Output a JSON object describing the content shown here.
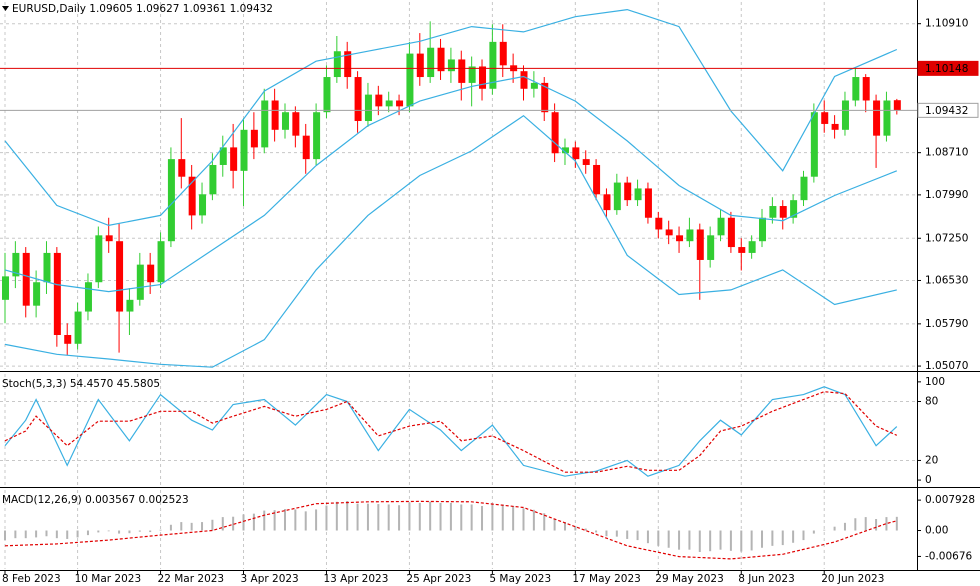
{
  "chart_data": [
    {
      "type": "candlestick",
      "title": "EURUSD,Daily 1.09605 1.09627 1.09361 1.09432",
      "up_color": "#32cd32",
      "down_color": "#ff0000",
      "grid": true,
      "ylim": [
        1.0502,
        1.1128
      ],
      "yticks": [
        {
          "value": 1.1091,
          "label": "1.10910"
        },
        {
          "value": 1.0871,
          "label": "1.08710"
        },
        {
          "value": 1.0799,
          "label": "1.07990"
        },
        {
          "value": 1.0725,
          "label": "1.07250"
        },
        {
          "value": 1.0653,
          "label": "1.06530"
        },
        {
          "value": 1.0579,
          "label": "1.05790"
        },
        {
          "value": 1.0507,
          "label": "1.05070"
        }
      ],
      "price_lines": [
        {
          "value": 1.10148,
          "color": "#e00000",
          "tag_fill": "#e00000",
          "tag_text": "#ffffff"
        },
        {
          "value": 1.09432,
          "color": "#a0a0a0",
          "tag_fill": "#ffffff",
          "tag_text": "#000000"
        }
      ],
      "ohlc": [
        [
          1.062,
          1.07,
          1.058,
          1.066
        ],
        [
          1.066,
          1.072,
          1.064,
          1.07
        ],
        [
          1.07,
          1.071,
          1.059,
          1.061
        ],
        [
          1.061,
          1.067,
          1.059,
          1.065
        ],
        [
          1.065,
          1.072,
          1.063,
          1.07
        ],
        [
          1.07,
          1.071,
          1.054,
          1.056
        ],
        [
          1.056,
          1.058,
          1.0525,
          1.0545
        ],
        [
          1.0545,
          1.0615,
          1.0535,
          1.06
        ],
        [
          1.06,
          1.0665,
          1.0585,
          1.065
        ],
        [
          1.065,
          1.0745,
          1.064,
          1.073
        ],
        [
          1.073,
          1.076,
          1.07,
          1.072
        ],
        [
          1.072,
          1.075,
          1.053,
          1.06
        ],
        [
          1.06,
          1.064,
          1.056,
          1.062
        ],
        [
          1.062,
          1.07,
          1.061,
          1.068
        ],
        [
          1.068,
          1.07,
          1.063,
          1.065
        ],
        [
          1.065,
          1.0735,
          1.064,
          1.072
        ],
        [
          1.072,
          1.088,
          1.071,
          1.086
        ],
        [
          1.086,
          1.093,
          1.081,
          1.083
        ],
        [
          1.083,
          1.085,
          1.074,
          1.0764
        ],
        [
          1.0764,
          1.082,
          1.075,
          1.08
        ],
        [
          1.08,
          1.087,
          1.079,
          1.085
        ],
        [
          1.085,
          1.09,
          1.083,
          1.088
        ],
        [
          1.088,
          1.092,
          1.081,
          1.084
        ],
        [
          1.084,
          1.093,
          1.078,
          1.091
        ],
        [
          1.091,
          1.094,
          1.086,
          1.088
        ],
        [
          1.088,
          1.098,
          1.087,
          1.096
        ],
        [
          1.096,
          1.098,
          1.089,
          1.091
        ],
        [
          1.091,
          1.0955,
          1.0895,
          1.094
        ],
        [
          1.094,
          1.095,
          1.088,
          1.09
        ],
        [
          1.09,
          1.092,
          1.0835,
          1.086
        ],
        [
          1.086,
          1.0955,
          1.085,
          1.094
        ],
        [
          1.094,
          1.102,
          1.093,
          1.1
        ],
        [
          1.1,
          1.107,
          1.099,
          1.1044
        ],
        [
          1.1044,
          1.106,
          1.098,
          1.1
        ],
        [
          1.1,
          1.101,
          1.0905,
          1.0925
        ],
        [
          1.0925,
          1.099,
          1.0915,
          1.097
        ],
        [
          1.097,
          1.0985,
          1.0935,
          1.095
        ],
        [
          1.095,
          1.0975,
          1.094,
          1.096
        ],
        [
          1.096,
          1.097,
          1.0935,
          1.095
        ],
        [
          1.095,
          1.106,
          1.094,
          1.104
        ],
        [
          1.104,
          1.1075,
          1.0985,
          1.1
        ],
        [
          1.1,
          1.1095,
          1.099,
          1.105
        ],
        [
          1.105,
          1.1065,
          1.0995,
          1.101
        ],
        [
          1.101,
          1.105,
          1.099,
          1.103
        ],
        [
          1.103,
          1.1045,
          1.096,
          1.099
        ],
        [
          1.099,
          1.1035,
          1.095,
          1.1018
        ],
        [
          1.1018,
          1.103,
          1.096,
          1.098
        ],
        [
          1.098,
          1.109,
          1.097,
          1.106
        ],
        [
          1.106,
          1.109,
          1.1,
          1.102
        ],
        [
          1.102,
          1.104,
          1.099,
          1.101
        ],
        [
          1.101,
          1.102,
          1.096,
          1.098
        ],
        [
          1.098,
          1.101,
          1.0965,
          1.099
        ],
        [
          1.099,
          1.1,
          1.0925,
          1.094
        ],
        [
          1.094,
          1.0955,
          1.0855,
          1.087
        ],
        [
          1.087,
          1.0895,
          1.085,
          1.088
        ],
        [
          1.088,
          1.089,
          1.0845,
          1.086
        ],
        [
          1.086,
          1.0875,
          1.0835,
          1.085
        ],
        [
          1.085,
          1.086,
          1.079,
          1.08
        ],
        [
          1.08,
          1.081,
          1.076,
          1.0773
        ],
        [
          1.0773,
          1.0835,
          1.0765,
          1.082
        ],
        [
          1.082,
          1.083,
          1.078,
          1.079
        ],
        [
          1.079,
          1.0825,
          1.078,
          1.081
        ],
        [
          1.081,
          1.082,
          1.075,
          1.076
        ],
        [
          1.076,
          1.077,
          1.0725,
          1.074
        ],
        [
          1.074,
          1.0755,
          1.0715,
          1.073
        ],
        [
          1.073,
          1.0745,
          1.07,
          1.072
        ],
        [
          1.072,
          1.076,
          1.071,
          1.074
        ],
        [
          1.074,
          1.075,
          1.062,
          1.0688
        ],
        [
          1.0688,
          1.0745,
          1.0675,
          1.073
        ],
        [
          1.073,
          1.0775,
          1.072,
          1.076
        ],
        [
          1.076,
          1.077,
          1.07,
          1.071
        ],
        [
          1.071,
          1.0725,
          1.067,
          1.07
        ],
        [
          1.07,
          1.073,
          1.069,
          1.072
        ],
        [
          1.072,
          1.0775,
          1.071,
          1.076
        ],
        [
          1.076,
          1.0795,
          1.075,
          1.078
        ],
        [
          1.078,
          1.079,
          1.074,
          1.076
        ],
        [
          1.076,
          1.08,
          1.075,
          1.079
        ],
        [
          1.079,
          1.084,
          1.078,
          1.083
        ],
        [
          1.083,
          1.0955,
          1.082,
          1.094
        ],
        [
          1.094,
          1.096,
          1.0905,
          1.092
        ],
        [
          1.092,
          1.0935,
          1.0895,
          1.091
        ],
        [
          1.091,
          1.0975,
          1.09,
          1.096
        ],
        [
          1.096,
          1.1015,
          1.095,
          1.1
        ],
        [
          1.1,
          1.1005,
          1.094,
          1.096
        ],
        [
          1.096,
          1.097,
          1.0845,
          1.09
        ],
        [
          1.09,
          1.0975,
          1.089,
          1.096
        ],
        [
          1.09605,
          1.09627,
          1.09361,
          1.09432
        ]
      ],
      "lines": [
        {
          "color": "#3ab0e2",
          "x": [
            0,
            5,
            10,
            15,
            20,
            25,
            30,
            35,
            40,
            45,
            50,
            55,
            60,
            65,
            70,
            75,
            80,
            86
          ],
          "values": [
            1.0891,
            1.0781,
            1.0747,
            1.0764,
            1.0857,
            1.0976,
            1.1027,
            1.1044,
            1.1061,
            1.1086,
            1.1077,
            1.1103,
            1.1115,
            1.1086,
            1.0942,
            1.084,
            1.1001,
            1.1047
          ]
        },
        {
          "color": "#3ab0e2",
          "x": [
            0,
            5,
            10,
            15,
            20,
            25,
            30,
            35,
            40,
            45,
            50,
            55,
            60,
            65,
            70,
            75,
            80,
            86
          ],
          "values": [
            1.0671,
            1.0646,
            1.0634,
            1.0646,
            1.0705,
            1.0764,
            1.0849,
            1.0917,
            1.0959,
            1.0984,
            1.1001,
            1.0959,
            1.0891,
            1.0815,
            1.0764,
            1.0755,
            1.0798,
            1.084
          ]
        },
        {
          "color": "#3ab0e2",
          "x": [
            0,
            5,
            10,
            15,
            20,
            25,
            30,
            35,
            40,
            45,
            50,
            55,
            60,
            65,
            70,
            75,
            80,
            86
          ],
          "values": [
            1.0544,
            1.0527,
            1.0519,
            1.051,
            1.0505,
            1.0552,
            1.0671,
            1.0764,
            1.0832,
            1.0874,
            1.0934,
            1.0857,
            1.0696,
            1.0629,
            1.0637,
            1.0671,
            1.0612,
            1.0637
          ]
        }
      ]
    },
    {
      "type": "line",
      "title": "Stoch(5,3,3) 54.4570 45.5805",
      "grid": false,
      "ylim": [
        -5,
        108
      ],
      "yticks": [
        100,
        80,
        20,
        0
      ],
      "level_lines": [
        20,
        80
      ],
      "series": [
        {
          "color": "#3ab0e2",
          "dashed": false,
          "x": [
            0,
            2,
            3,
            6,
            9,
            12,
            15,
            18,
            20,
            22,
            25,
            28,
            31,
            33,
            36,
            39,
            42,
            44,
            47,
            50,
            54,
            57,
            60,
            62,
            65,
            67,
            69,
            71,
            74,
            77,
            79,
            81,
            84,
            86
          ],
          "values": [
            35,
            61,
            82,
            15,
            82,
            40,
            87,
            61,
            51,
            77,
            82,
            56,
            87,
            80,
            30,
            72,
            51,
            30,
            56,
            15,
            4,
            9,
            20,
            4,
            15,
            40,
            61,
            46,
            82,
            87,
            95,
            87,
            35,
            54.457
          ]
        },
        {
          "color": "#e00000",
          "dashed": true,
          "x": [
            0,
            2,
            3,
            6,
            9,
            12,
            15,
            18,
            20,
            22,
            25,
            28,
            31,
            33,
            36,
            39,
            42,
            44,
            47,
            50,
            54,
            57,
            60,
            62,
            65,
            67,
            69,
            71,
            74,
            77,
            79,
            81,
            84,
            86
          ],
          "values": [
            40,
            50,
            65,
            35,
            60,
            60,
            70,
            70,
            58,
            65,
            75,
            65,
            72,
            80,
            45,
            55,
            60,
            40,
            45,
            30,
            8,
            8,
            14,
            10,
            10,
            25,
            50,
            55,
            70,
            82,
            90,
            88,
            55,
            45.5805
          ]
        }
      ]
    },
    {
      "type": "bar",
      "title": "MACD(12,26,9) 0.003567 0.002523",
      "grid": false,
      "ylim": [
        -0.01004,
        0.01057
      ],
      "yticks": [
        0.007928,
        {
          "value": 0,
          "label": "0.00"
        },
        -0.00676
      ],
      "xticks": [
        {
          "value": 0,
          "label": "8 Feb 2023"
        },
        {
          "value": 7,
          "label": "10 Mar 2023"
        },
        {
          "value": 15,
          "label": "22 Mar 2023"
        },
        {
          "value": 23,
          "label": "3 Apr 2023"
        },
        {
          "value": 31,
          "label": "13 Apr 2023"
        },
        {
          "value": 39,
          "label": "25 Apr 2023"
        },
        {
          "value": 47,
          "label": "5 May 2023"
        },
        {
          "value": 55,
          "label": "17 May 2023"
        },
        {
          "value": 63,
          "label": "29 May 2023"
        },
        {
          "value": 71,
          "label": "8 Jun 2023"
        },
        {
          "value": 79,
          "label": "20 Jun 2023"
        }
      ],
      "color": "#b4b4b4",
      "values": [
        -0.0025,
        -0.002,
        -0.002,
        -0.0018,
        -0.0015,
        -0.002,
        -0.0022,
        -0.0018,
        -0.0012,
        -0.0005,
        -0.0002,
        -0.0008,
        -0.0007,
        -0.0003,
        -0.0004,
        0.0002,
        0.0015,
        0.0022,
        0.002,
        0.0022,
        0.0028,
        0.0035,
        0.0036,
        0.0042,
        0.0044,
        0.0052,
        0.0053,
        0.0056,
        0.0055,
        0.005,
        0.0055,
        0.0065,
        0.0075,
        0.0077,
        0.007,
        0.007,
        0.0069,
        0.0068,
        0.0066,
        0.0073,
        0.0072,
        0.0075,
        0.0072,
        0.0072,
        0.0068,
        0.0068,
        0.0064,
        0.007,
        0.0068,
        0.0064,
        0.0058,
        0.0054,
        0.0045,
        0.003,
        0.0022,
        0.0012,
        0.0005,
        -0.0005,
        -0.0015,
        -0.0016,
        -0.0022,
        -0.0025,
        -0.0033,
        -0.004,
        -0.0045,
        -0.005,
        -0.005,
        -0.0056,
        -0.0054,
        -0.005,
        -0.0053,
        -0.0055,
        -0.0052,
        -0.0045,
        -0.004,
        -0.0038,
        -0.0032,
        -0.0025,
        -0.0008,
        0.0002,
        0.001,
        0.002,
        0.0032,
        0.0035,
        0.003,
        0.0035,
        0.003567
      ],
      "signal": {
        "color": "#e00000",
        "x": [
          0,
          5,
          10,
          15,
          20,
          25,
          30,
          35,
          40,
          45,
          50,
          55,
          60,
          65,
          70,
          75,
          80,
          85,
          86
        ],
        "values": [
          -0.004,
          -0.0035,
          -0.0025,
          -0.0012,
          0,
          0.004,
          0.007,
          0.0075,
          0.0076,
          0.0075,
          0.006,
          0.001,
          -0.004,
          -0.0068,
          -0.0074,
          -0.0062,
          -0.003,
          0.0018,
          0.002523
        ]
      }
    }
  ]
}
